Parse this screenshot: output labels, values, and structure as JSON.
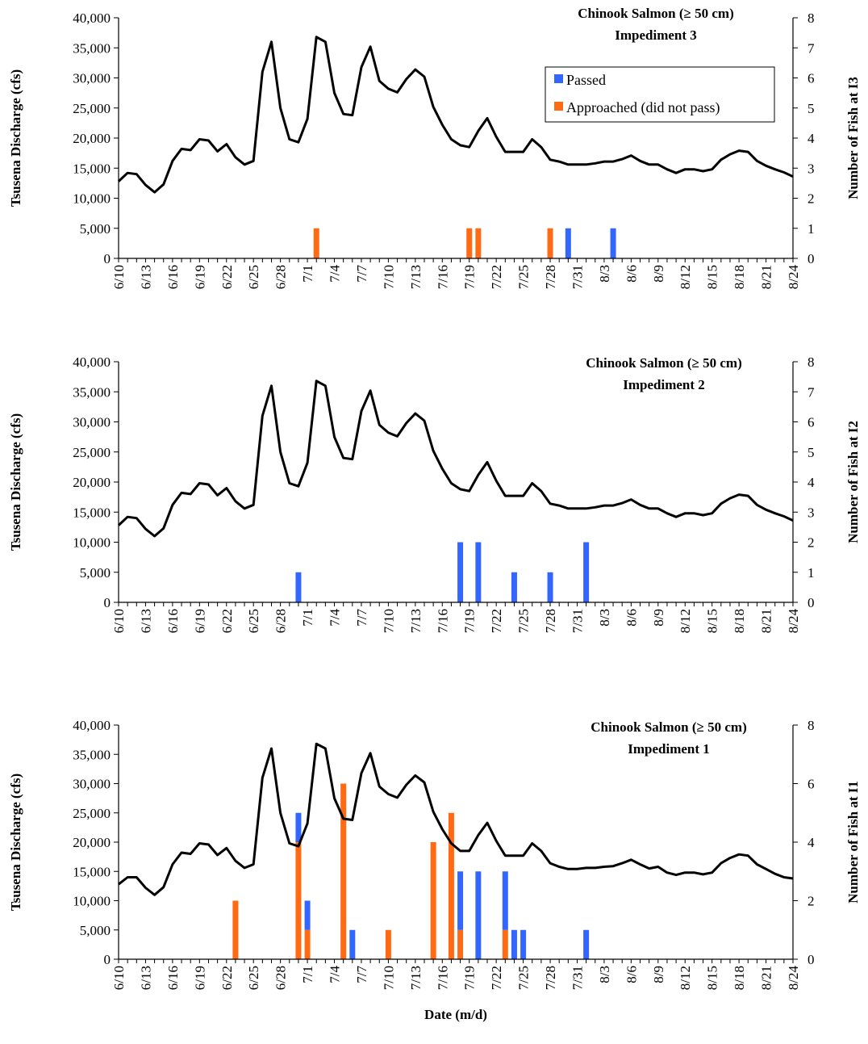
{
  "colors": {
    "discharge_line": "#000000",
    "passed": "#3366ff",
    "approached": "#ff6a13",
    "axis": "#000000"
  },
  "chart_data": [
    {
      "type": "bar+line",
      "title_line1": "Chinook Salmon (≥ 50 cm)",
      "title_line2": "Impediment 3",
      "ylabel": "Tsusena Discharge (cfs)",
      "ylabel_right": "Number of Fish at I3",
      "xlabel": "",
      "ylim": [
        0,
        40000
      ],
      "y_ticks": [
        "0",
        "5,000",
        "10,000",
        "15,000",
        "20,000",
        "25,000",
        "30,000",
        "35,000",
        "40,000"
      ],
      "ylim_right": [
        0,
        8
      ],
      "y2_ticks": [
        "0",
        "1",
        "2",
        "3",
        "4",
        "5",
        "6",
        "7",
        "8"
      ],
      "legend": {
        "position": "top-right",
        "entries": [
          "Passed",
          "Approached (did not pass)"
        ]
      },
      "x_tick_labels": [
        "6/10",
        "6/13",
        "6/16",
        "6/19",
        "6/22",
        "6/25",
        "6/28",
        "7/1",
        "7/4",
        "7/7",
        "7/10",
        "7/13",
        "7/16",
        "7/19",
        "7/22",
        "7/25",
        "7/28",
        "7/31",
        "8/3",
        "8/6",
        "8/9",
        "8/12",
        "8/15",
        "8/18",
        "8/21",
        "8/24"
      ],
      "discharge_cfs": [
        12800,
        14200,
        14000,
        12200,
        11000,
        12300,
        16200,
        18200,
        18000,
        19800,
        19600,
        17800,
        19000,
        16800,
        15600,
        16200,
        31000,
        36000,
        25000,
        19800,
        19300,
        23200,
        36800,
        36000,
        27500,
        24000,
        23800,
        31800,
        35200,
        29500,
        28200,
        27600,
        29800,
        31400,
        30200,
        25200,
        22200,
        19800,
        18800,
        18500,
        21200,
        23300,
        20200,
        17700,
        17700,
        17700,
        19800,
        18500,
        16400,
        16100,
        15600,
        15600,
        15600,
        15800,
        16100,
        16100,
        16500,
        17100,
        16200,
        15600,
        15600,
        14800,
        14200,
        14800,
        14800,
        14500,
        14800,
        16400,
        17300,
        17900,
        17700,
        16200,
        15400,
        14800,
        14300,
        13600
      ],
      "passed": [
        {
          "date": "7/30",
          "count": 1
        },
        {
          "date": "8/4",
          "count": 1
        }
      ],
      "approached": [
        {
          "date": "7/2",
          "count": 1
        },
        {
          "date": "7/19",
          "count": 1
        },
        {
          "date": "7/20",
          "count": 1
        },
        {
          "date": "7/28",
          "count": 1
        }
      ]
    },
    {
      "type": "bar+line",
      "title_line1": "Chinook Salmon (≥ 50 cm)",
      "title_line2": "Impediment 2",
      "ylabel": "Tsusena Discharge (cfs)",
      "ylabel_right": "Number of Fish at I2",
      "xlabel": "",
      "ylim": [
        0,
        40000
      ],
      "y_ticks": [
        "0",
        "5,000",
        "10,000",
        "15,000",
        "20,000",
        "25,000",
        "30,000",
        "35,000",
        "40,000"
      ],
      "ylim_right": [
        0,
        8
      ],
      "y2_ticks": [
        "0",
        "1",
        "2",
        "3",
        "4",
        "5",
        "6",
        "7",
        "8"
      ],
      "x_tick_labels": [
        "6/10",
        "6/13",
        "6/16",
        "6/19",
        "6/22",
        "6/25",
        "6/28",
        "7/1",
        "7/4",
        "7/7",
        "7/10",
        "7/13",
        "7/16",
        "7/19",
        "7/22",
        "7/25",
        "7/28",
        "7/31",
        "8/3",
        "8/6",
        "8/9",
        "8/12",
        "8/15",
        "8/18",
        "8/21",
        "8/24"
      ],
      "discharge_cfs": [
        12800,
        14200,
        14000,
        12200,
        11000,
        12300,
        16200,
        18200,
        18000,
        19800,
        19600,
        17800,
        19000,
        16800,
        15600,
        16200,
        31000,
        36000,
        25000,
        19800,
        19300,
        23200,
        36800,
        36000,
        27500,
        24000,
        23800,
        31800,
        35200,
        29500,
        28200,
        27600,
        29800,
        31400,
        30200,
        25200,
        22200,
        19800,
        18800,
        18500,
        21200,
        23300,
        20200,
        17700,
        17700,
        17700,
        19800,
        18500,
        16400,
        16100,
        15600,
        15600,
        15600,
        15800,
        16100,
        16100,
        16500,
        17100,
        16200,
        15600,
        15600,
        14800,
        14200,
        14800,
        14800,
        14500,
        14800,
        16400,
        17300,
        17900,
        17700,
        16200,
        15400,
        14800,
        14300,
        13600
      ],
      "passed": [
        {
          "date": "6/30",
          "count": 1
        },
        {
          "date": "7/18",
          "count": 2
        },
        {
          "date": "7/20",
          "count": 2
        },
        {
          "date": "7/24",
          "count": 1
        },
        {
          "date": "7/28",
          "count": 1
        },
        {
          "date": "8/1",
          "count": 2
        }
      ],
      "approached": []
    },
    {
      "type": "bar+line",
      "title_line1": "Chinook Salmon (≥ 50 cm)",
      "title_line2": "Impediment 1",
      "ylabel": "Tsusena Discharge (cfs)",
      "ylabel_right": "Number of Fish at I1",
      "xlabel": "Date (m/d)",
      "ylim": [
        0,
        40000
      ],
      "y_ticks": [
        "0",
        "5,000",
        "10,000",
        "15,000",
        "20,000",
        "25,000",
        "30,000",
        "35,000",
        "40,000"
      ],
      "ylim_right": [
        0,
        8
      ],
      "y2_ticks": [
        "0",
        "2",
        "4",
        "6",
        "8"
      ],
      "x_tick_labels": [
        "6/10",
        "6/13",
        "6/16",
        "6/19",
        "6/22",
        "6/25",
        "6/28",
        "7/1",
        "7/4",
        "7/7",
        "7/10",
        "7/13",
        "7/16",
        "7/19",
        "7/22",
        "7/25",
        "7/28",
        "7/31",
        "8/3",
        "8/6",
        "8/9",
        "8/12",
        "8/15",
        "8/18",
        "8/21",
        "8/24"
      ],
      "discharge_cfs": [
        12800,
        14000,
        14000,
        12200,
        11000,
        12300,
        16200,
        18200,
        18000,
        19800,
        19600,
        17800,
        19000,
        16800,
        15600,
        16200,
        31000,
        36000,
        25000,
        19800,
        19300,
        23200,
        36800,
        36000,
        27500,
        24000,
        23800,
        31800,
        35200,
        29500,
        28200,
        27600,
        29800,
        31400,
        30200,
        25200,
        22200,
        19800,
        18500,
        18500,
        21200,
        23300,
        20200,
        17700,
        17700,
        17700,
        19800,
        18500,
        16400,
        15800,
        15400,
        15400,
        15600,
        15600,
        15800,
        15900,
        16400,
        17000,
        16200,
        15500,
        15800,
        14800,
        14400,
        14800,
        14800,
        14500,
        14800,
        16400,
        17300,
        17900,
        17700,
        16200,
        15400,
        14600,
        14000,
        13800
      ],
      "passed": [
        {
          "date": "6/30",
          "count": 1
        },
        {
          "date": "7/1",
          "count": 1
        },
        {
          "date": "7/6",
          "count": 1
        },
        {
          "date": "7/18",
          "count": 2
        },
        {
          "date": "7/20",
          "count": 3
        },
        {
          "date": "7/23",
          "count": 2
        },
        {
          "date": "7/24",
          "count": 1
        },
        {
          "date": "7/25",
          "count": 1
        },
        {
          "date": "8/1",
          "count": 1
        }
      ],
      "approached": [
        {
          "date": "6/23",
          "count": 2
        },
        {
          "date": "6/30",
          "count": 4
        },
        {
          "date": "7/1",
          "count": 1
        },
        {
          "date": "7/5",
          "count": 6
        },
        {
          "date": "7/10",
          "count": 1
        },
        {
          "date": "7/15",
          "count": 4
        },
        {
          "date": "7/17",
          "count": 5
        },
        {
          "date": "7/18",
          "count": 1
        },
        {
          "date": "7/23",
          "count": 1
        }
      ]
    }
  ]
}
